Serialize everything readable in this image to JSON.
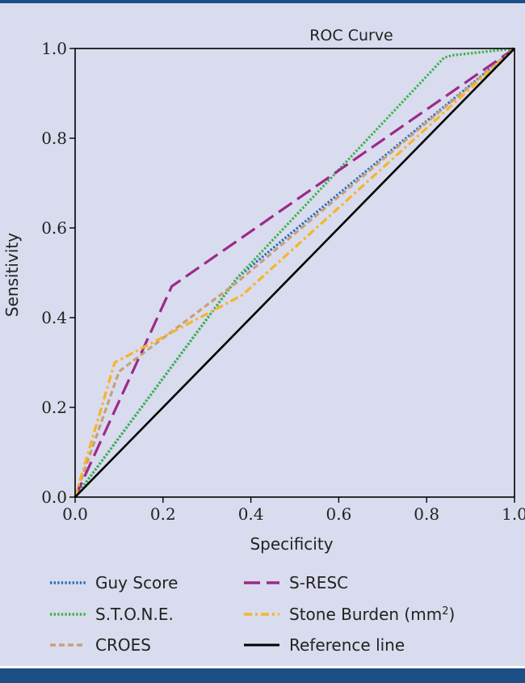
{
  "chart_data": {
    "type": "line",
    "title": "ROC Curve",
    "xlabel": "Specificity",
    "ylabel": "Sensitivity",
    "xlim": [
      0,
      1
    ],
    "ylim": [
      0,
      1
    ],
    "x_ticks": [
      "0.0",
      "0.2",
      "0.4",
      "0.6",
      "0.8",
      "1.0"
    ],
    "y_ticks": [
      "0.0",
      "0.2",
      "0.4",
      "0.6",
      "0.8",
      "1.0"
    ],
    "grid": false,
    "legend_position": "bottom",
    "series": [
      {
        "name": "Guy Score",
        "color": "#2b6fbf",
        "style": "dotted",
        "x": [
          0,
          0.37,
          1.0
        ],
        "y": [
          0,
          0.49,
          1.0
        ]
      },
      {
        "name": "S.T.O.N.E.",
        "color": "#3cb34a",
        "style": "dotted",
        "x": [
          0,
          0.37,
          0.84,
          0.86,
          1.0
        ],
        "y": [
          0,
          0.49,
          0.98,
          0.985,
          1.0
        ]
      },
      {
        "name": "CROES",
        "color": "#c9a07a",
        "style": "dashed",
        "x": [
          0,
          0.1,
          0.37,
          1.0
        ],
        "y": [
          0,
          0.28,
          0.48,
          1.0
        ]
      },
      {
        "name": "S-RESC",
        "color": "#9c2a8a",
        "style": "longdash",
        "x": [
          0,
          0.22,
          1.0
        ],
        "y": [
          0,
          0.47,
          1.0
        ]
      },
      {
        "name": "Stone Burden (mm",
        "name_sup": "2",
        "name_suffix": ")",
        "color": "#f5b528",
        "style": "dashdot",
        "x": [
          0,
          0.09,
          0.38,
          1.0
        ],
        "y": [
          0,
          0.3,
          0.45,
          1.0
        ]
      },
      {
        "name": "Reference line",
        "color": "#000000",
        "style": "solid",
        "x": [
          0,
          1
        ],
        "y": [
          0,
          1
        ]
      }
    ]
  }
}
